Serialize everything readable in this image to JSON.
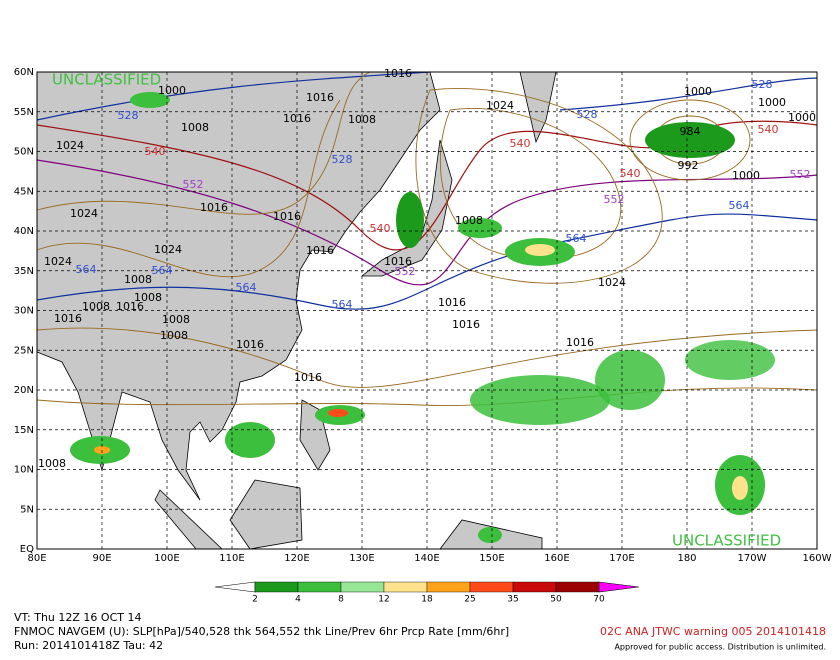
{
  "map": {
    "lat_labels": [
      "60N",
      "55N",
      "50N",
      "45N",
      "40N",
      "35N",
      "30N",
      "25N",
      "20N",
      "15N",
      "10N",
      "5N",
      "EQ"
    ],
    "lon_labels": [
      "80E",
      "90E",
      "100E",
      "110E",
      "120E",
      "130E",
      "140E",
      "150E",
      "160E",
      "170E",
      "180",
      "170W",
      "160W"
    ],
    "classification": [
      "UNCLASSIFIED",
      "UNCLASSIFIED"
    ],
    "contour_labels": [
      "1016",
      "1000",
      "1016",
      "1016",
      "1008",
      "1024",
      "1000",
      "1000",
      "1024",
      "1008",
      "1016",
      "1016",
      "1024",
      "1024",
      "1016",
      "1008",
      "1008",
      "1016",
      "1008",
      "1008",
      "1016",
      "1016",
      "1016",
      "1016",
      "1016",
      "1024",
      "1016",
      "1016",
      "1008",
      "992",
      "984",
      "1000",
      "1008",
      "1000",
      "528",
      "528",
      "528",
      "528",
      "540",
      "540",
      "540",
      "540",
      "540",
      "552",
      "552",
      "552",
      "552",
      "564",
      "564",
      "564",
      "564",
      "564",
      "564",
      "1024",
      "1008"
    ]
  },
  "colorbar": {
    "ticks": [
      2,
      4,
      8,
      12,
      18,
      25,
      35,
      50,
      70
    ],
    "colors": [
      "#ffffff",
      "#1c9a1c",
      "#3cbf3c",
      "#96e696",
      "#ffe38c",
      "#ffa31a",
      "#ff4a1a",
      "#c80a0a",
      "#9a0000",
      "#ff00ff"
    ]
  },
  "footer": {
    "valid": "VT: Thu 12Z 16 OCT 14",
    "model": "FNMOC NAVGEM (U): SLP[hPa]/540,528 thk 564,552 thk Line/Prev 6hr Prcp Rate [mm/6hr]",
    "run": "Run: 2014101418Z Tau: 42",
    "warning": "02C ANA JTWC warning 005 2014101418",
    "approval": "Approved for public access. Distribution is unlimited."
  }
}
